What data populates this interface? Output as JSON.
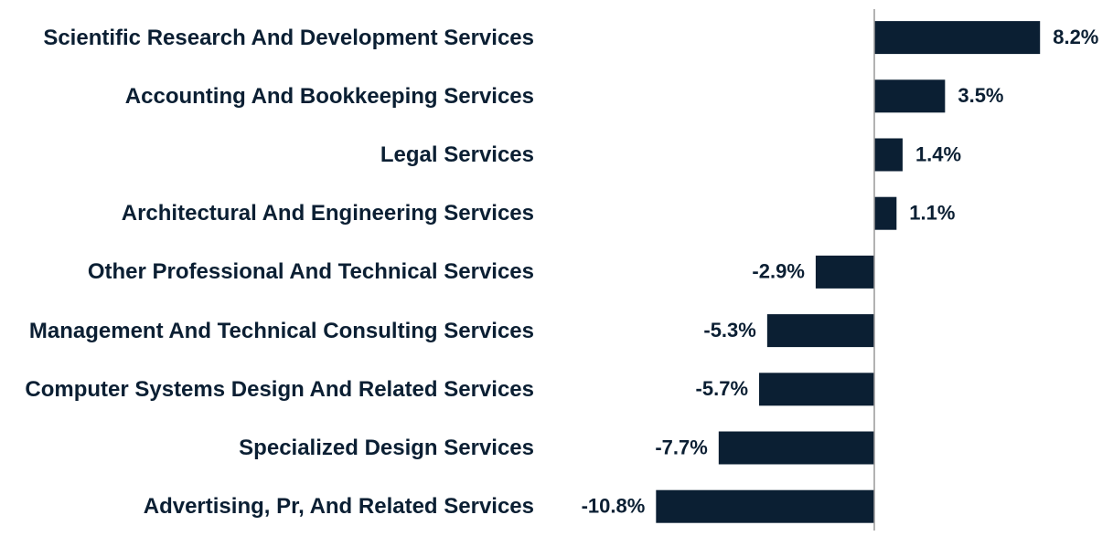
{
  "chart_data": {
    "type": "bar",
    "orientation": "horizontal",
    "color": "#0b1f33",
    "categories": [
      "Scientific Research And Development Services",
      "Accounting And Bookkeeping Services",
      "Legal Services",
      "Architectural And Engineering Services",
      "Other Professional And Technical Services",
      "Management And Technical Consulting Services",
      "Computer Systems Design And Related Services",
      "Specialized Design Services",
      "Advertising, Pr, And Related Services"
    ],
    "values": [
      8.2,
      3.5,
      1.4,
      1.1,
      -2.9,
      -5.3,
      -5.7,
      -7.7,
      -10.8
    ],
    "value_labels": [
      "8.2%",
      "3.5%",
      "1.4%",
      "1.1%",
      "-2.9%",
      "-5.3%",
      "-5.7%",
      "-7.7%",
      "-10.8%"
    ]
  }
}
